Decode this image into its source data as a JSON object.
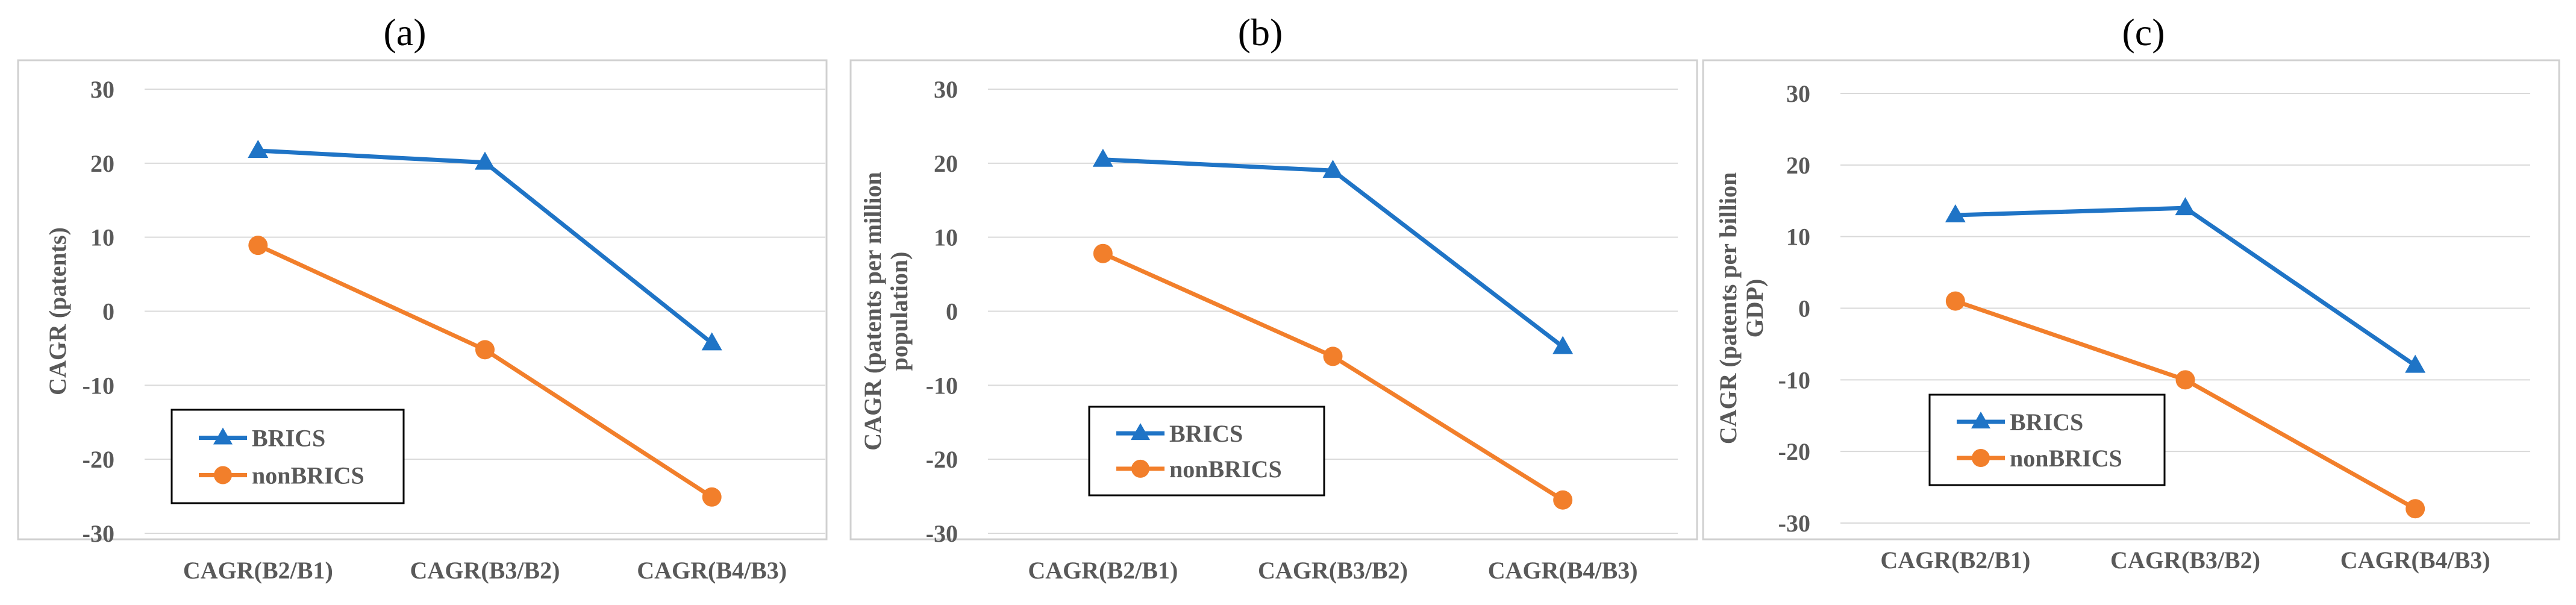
{
  "colors": {
    "BRICS": "#1f74c6",
    "nonBRICS": "#f27f2b",
    "grid": "#d9d9d9",
    "text": "#595959",
    "frame": "#d0d0d0"
  },
  "chart_data": [
    {
      "type": "line",
      "panel": "(a)",
      "ylabel_lines": [
        "CAGR (patents)"
      ],
      "ylim": [
        -30,
        30
      ],
      "yticks": [
        -30,
        -20,
        -10,
        0,
        10,
        20,
        30
      ],
      "categories": [
        "CAGR(B2/B1)",
        "CAGR(B3/B2)",
        "CAGR(B4/B3)"
      ],
      "grid": true,
      "legend_position": "lower-left",
      "series": [
        {
          "name": "BRICS",
          "marker": "triangle",
          "values": [
            21.7,
            20.1,
            -4.3
          ]
        },
        {
          "name": "nonBRICS",
          "marker": "circle",
          "values": [
            8.9,
            -5.2,
            -25.1
          ]
        }
      ]
    },
    {
      "type": "line",
      "panel": "(b)",
      "ylabel_lines": [
        "CAGR (patents per million",
        "population)"
      ],
      "ylim": [
        -30,
        30
      ],
      "yticks": [
        -30,
        -20,
        -10,
        0,
        10,
        20,
        30
      ],
      "categories": [
        "CAGR(B2/B1)",
        "CAGR(B3/B2)",
        "CAGR(B4/B3)"
      ],
      "grid": true,
      "legend_position": "lower-left",
      "series": [
        {
          "name": "BRICS",
          "marker": "triangle",
          "values": [
            20.5,
            19.0,
            -4.8
          ]
        },
        {
          "name": "nonBRICS",
          "marker": "circle",
          "values": [
            7.8,
            -6.1,
            -25.5
          ]
        }
      ]
    },
    {
      "type": "line",
      "panel": "(c)",
      "ylabel_lines": [
        "CAGR (patents  per billion",
        "GDP)"
      ],
      "ylim": [
        -30,
        30
      ],
      "yticks": [
        -30,
        -20,
        -10,
        0,
        10,
        20,
        30
      ],
      "categories": [
        "CAGR(B2/B1)",
        "CAGR(B3/B2)",
        "CAGR(B4/B3)"
      ],
      "grid": true,
      "legend_position": "lower-left",
      "series": [
        {
          "name": "BRICS",
          "marker": "triangle",
          "values": [
            13.0,
            14.0,
            -8.0
          ]
        },
        {
          "name": "nonBRICS",
          "marker": "circle",
          "values": [
            1.0,
            -10.0,
            -28.0
          ]
        }
      ]
    }
  ]
}
